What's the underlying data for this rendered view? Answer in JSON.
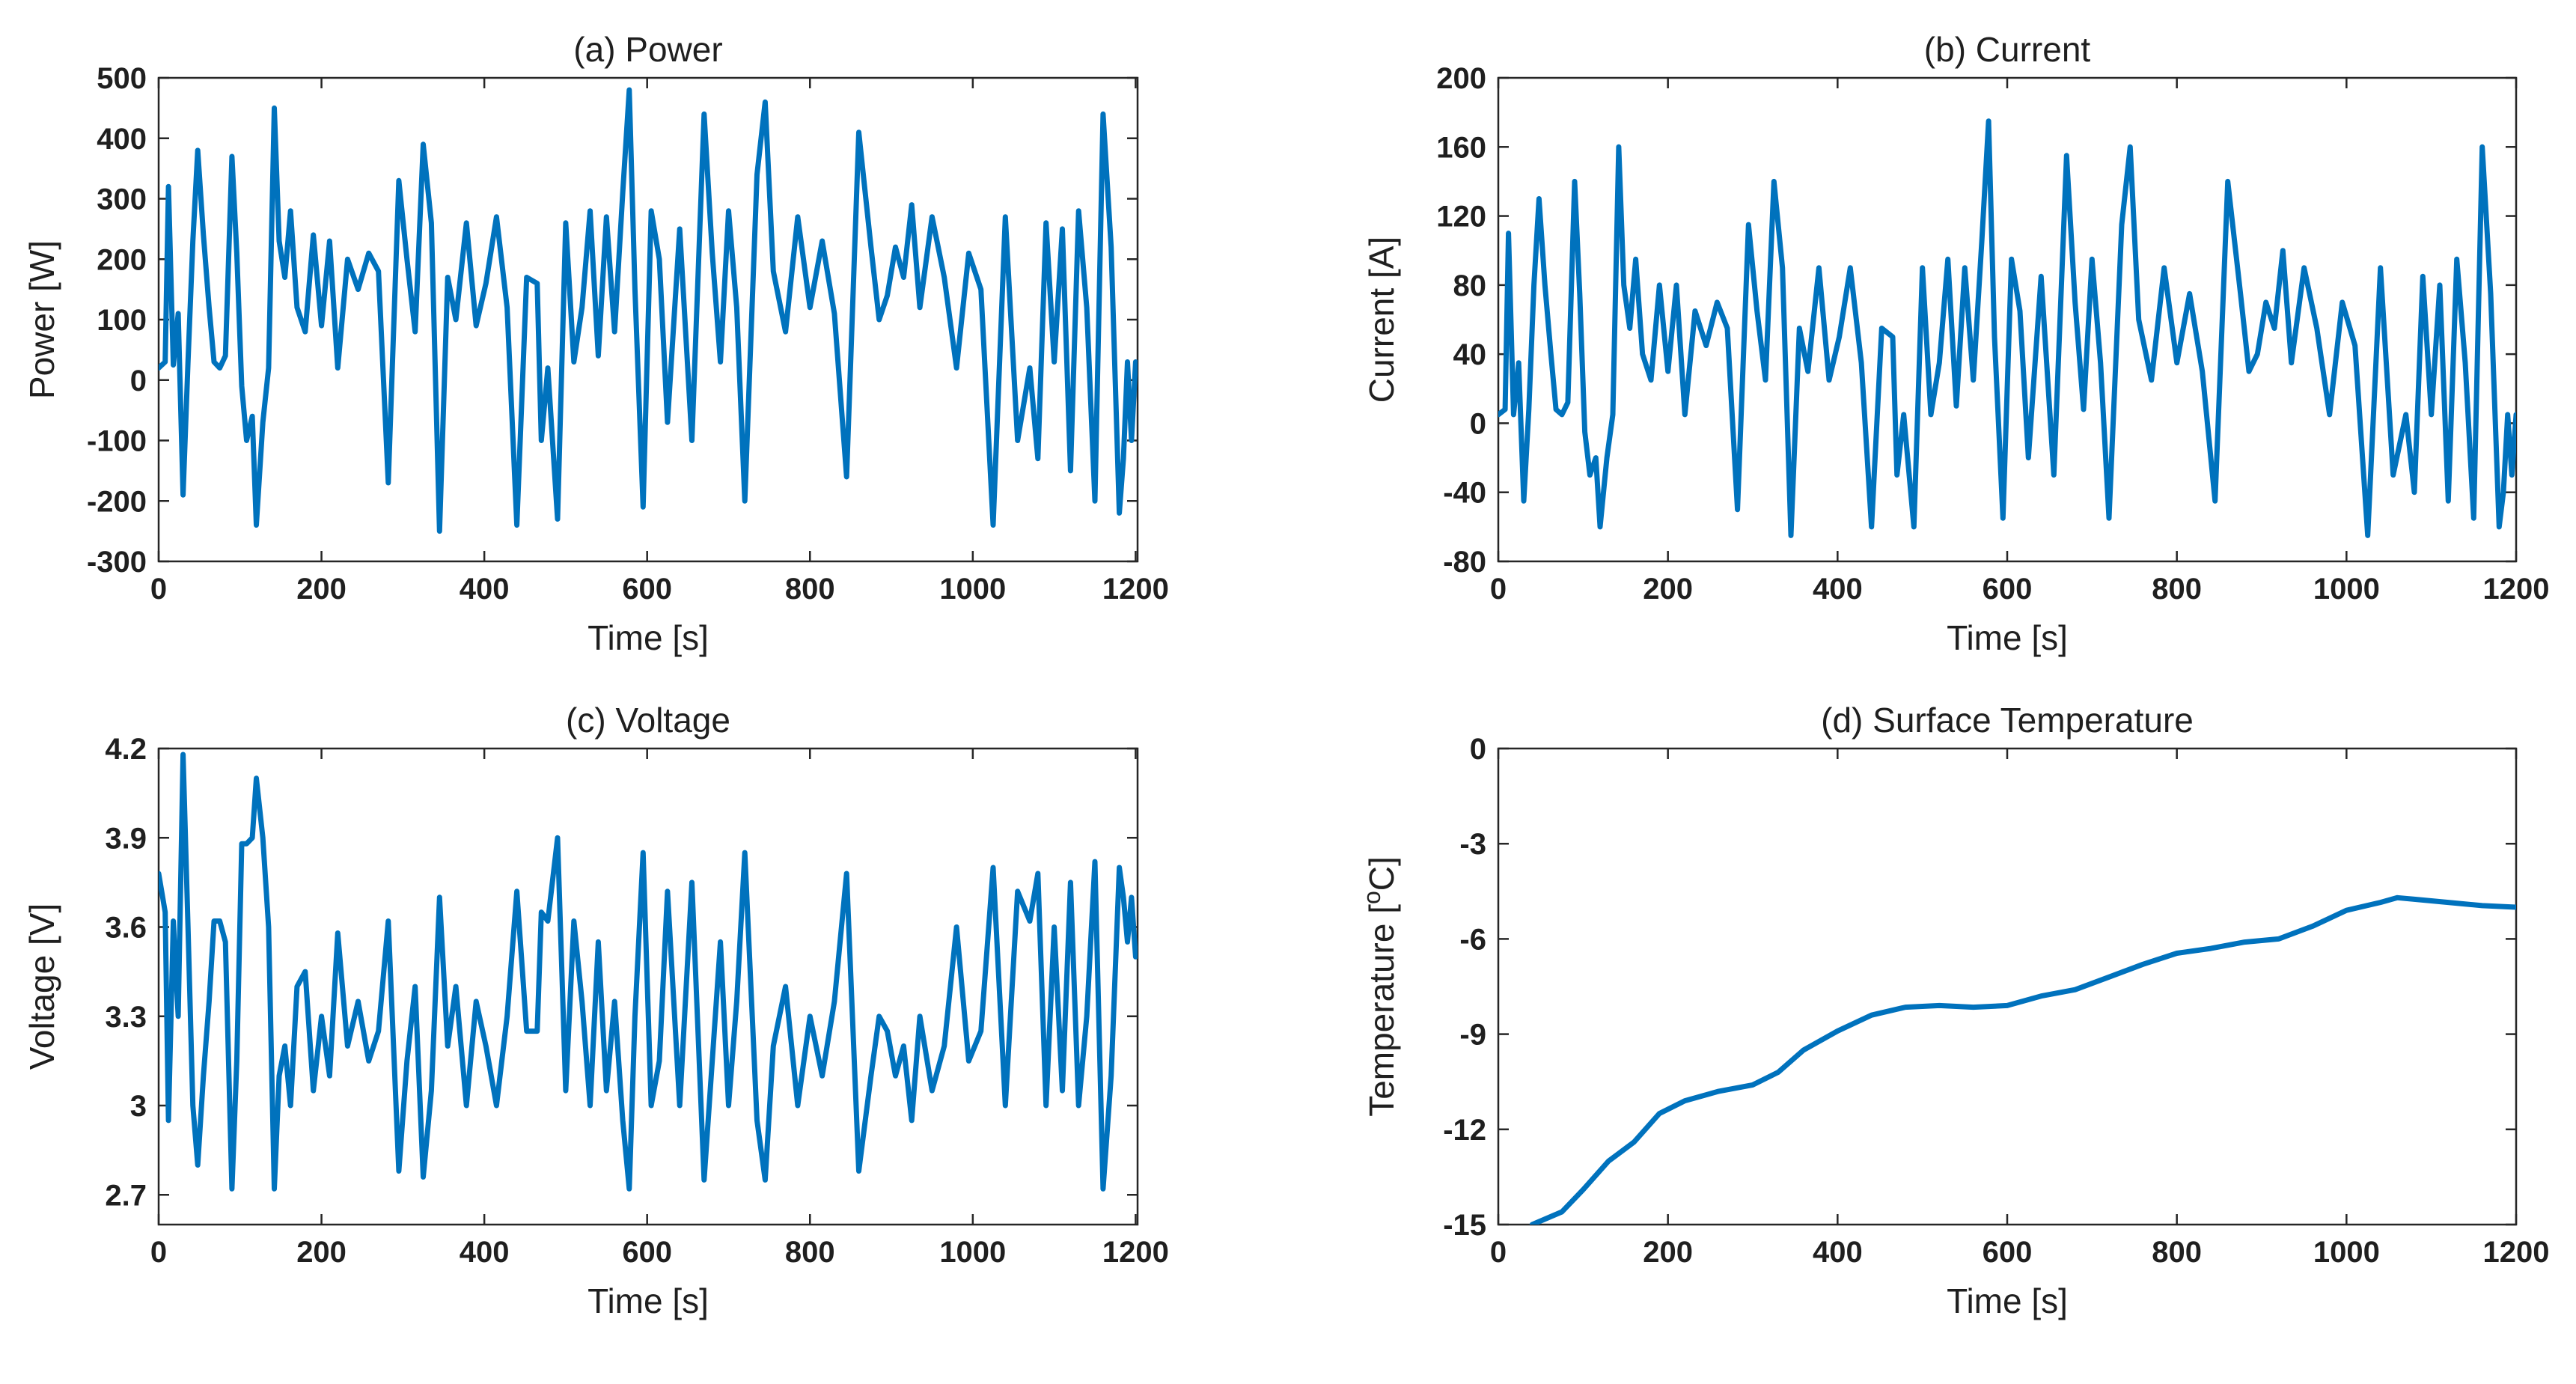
{
  "figure": {
    "line_color": "#0072bd"
  },
  "chart_data": [
    {
      "type": "line",
      "title": "(a) Power",
      "xlabel": "Time [s]",
      "ylabel": "Power [W]",
      "xlim": [
        0,
        1200
      ],
      "ylim": [
        -300,
        500
      ],
      "xticks": [
        0,
        200,
        400,
        600,
        800,
        1000,
        1200
      ],
      "xtick_labels": [
        "0",
        "200",
        "400",
        "600",
        "800",
        "1000",
        "1200"
      ],
      "yticks": [
        -300,
        -200,
        -100,
        0,
        100,
        200,
        300,
        400,
        500
      ],
      "ytick_labels": [
        "-300",
        "-200",
        "-100",
        "0",
        "100",
        "200",
        "300",
        "400",
        "500"
      ],
      "series": [
        {
          "name": "Power",
          "x": [
            0,
            8,
            12,
            18,
            24,
            30,
            36,
            42,
            48,
            55,
            62,
            68,
            75,
            82,
            90,
            96,
            102,
            108,
            115,
            120,
            128,
            135,
            142,
            148,
            155,
            162,
            170,
            180,
            190,
            200,
            210,
            220,
            232,
            245,
            258,
            270,
            282,
            295,
            305,
            315,
            325,
            335,
            345,
            355,
            365,
            378,
            390,
            402,
            415,
            428,
            440,
            452,
            465,
            470,
            478,
            490,
            500,
            510,
            520,
            530,
            540,
            550,
            560,
            570,
            578,
            585,
            595,
            605,
            615,
            625,
            640,
            655,
            670,
            680,
            690,
            700,
            710,
            720,
            735,
            745,
            755,
            770,
            785,
            800,
            815,
            830,
            845,
            860,
            875,
            885,
            895,
            905,
            915,
            925,
            935,
            950,
            965,
            980,
            995,
            1010,
            1025,
            1040,
            1055,
            1070,
            1080,
            1090,
            1100,
            1110,
            1120,
            1130,
            1140,
            1150,
            1160,
            1170,
            1180,
            1185,
            1190,
            1195,
            1200
          ],
          "y": [
            20,
            30,
            320,
            25,
            110,
            -190,
            30,
            230,
            380,
            240,
            120,
            30,
            20,
            40,
            370,
            210,
            -10,
            -100,
            -60,
            -240,
            -70,
            20,
            450,
            230,
            170,
            280,
            120,
            80,
            240,
            90,
            230,
            20,
            200,
            150,
            210,
            180,
            -170,
            330,
            200,
            80,
            390,
            260,
            -250,
            170,
            100,
            260,
            90,
            160,
            270,
            120,
            -240,
            170,
            160,
            -100,
            20,
            -230,
            260,
            30,
            120,
            280,
            40,
            270,
            80,
            310,
            480,
            150,
            -210,
            280,
            200,
            -70,
            250,
            -100,
            440,
            210,
            30,
            280,
            120,
            -200,
            340,
            460,
            180,
            80,
            270,
            120,
            230,
            110,
            -160,
            410,
            220,
            100,
            140,
            220,
            170,
            290,
            120,
            270,
            170,
            20,
            210,
            150,
            -240,
            270,
            -100,
            20,
            -130,
            260,
            30,
            250,
            -150,
            280,
            120,
            -200,
            440,
            220,
            -220,
            -130,
            30,
            -100,
            30
          ]
        }
      ]
    },
    {
      "type": "line",
      "title": "(b) Current",
      "xlabel": "Time [s]",
      "ylabel": "Current [A]",
      "xlim": [
        0,
        1200
      ],
      "ylim": [
        -80,
        200
      ],
      "xticks": [
        0,
        200,
        400,
        600,
        800,
        1000,
        1200
      ],
      "xtick_labels": [
        "0",
        "200",
        "400",
        "600",
        "800",
        "1000",
        "1200"
      ],
      "yticks": [
        -80,
        -40,
        0,
        40,
        80,
        120,
        160,
        200
      ],
      "ytick_labels": [
        "-80",
        "-40",
        "0",
        "40",
        "80",
        "120",
        "160",
        "200"
      ],
      "series": [
        {
          "name": "Current",
          "x": [
            0,
            8,
            12,
            18,
            24,
            30,
            36,
            42,
            48,
            55,
            62,
            68,
            75,
            82,
            90,
            96,
            102,
            108,
            115,
            120,
            128,
            135,
            142,
            148,
            155,
            162,
            170,
            180,
            190,
            200,
            210,
            220,
            232,
            245,
            258,
            270,
            282,
            295,
            305,
            315,
            325,
            335,
            345,
            355,
            365,
            378,
            390,
            402,
            415,
            428,
            440,
            452,
            465,
            470,
            478,
            490,
            500,
            510,
            520,
            530,
            540,
            550,
            560,
            570,
            578,
            585,
            595,
            605,
            615,
            625,
            640,
            655,
            670,
            680,
            690,
            700,
            710,
            720,
            735,
            745,
            755,
            770,
            785,
            800,
            815,
            830,
            845,
            860,
            875,
            885,
            895,
            905,
            915,
            925,
            935,
            950,
            965,
            980,
            995,
            1010,
            1025,
            1040,
            1055,
            1070,
            1080,
            1090,
            1100,
            1110,
            1120,
            1130,
            1140,
            1150,
            1160,
            1170,
            1180,
            1185,
            1190,
            1195,
            1200
          ],
          "y": [
            5,
            8,
            110,
            5,
            35,
            -45,
            8,
            80,
            130,
            80,
            40,
            8,
            5,
            12,
            140,
            75,
            -5,
            -30,
            -20,
            -60,
            -20,
            5,
            160,
            80,
            55,
            95,
            40,
            25,
            80,
            30,
            80,
            5,
            65,
            45,
            70,
            55,
            -50,
            115,
            65,
            25,
            140,
            90,
            -65,
            55,
            30,
            90,
            25,
            50,
            90,
            35,
            -60,
            55,
            50,
            -30,
            5,
            -60,
            90,
            5,
            35,
            95,
            10,
            90,
            25,
            105,
            175,
            50,
            -55,
            95,
            65,
            -20,
            85,
            -30,
            155,
            70,
            8,
            95,
            35,
            -55,
            115,
            160,
            60,
            25,
            90,
            35,
            75,
            30,
            -45,
            140,
            75,
            30,
            40,
            70,
            55,
            100,
            35,
            90,
            55,
            5,
            70,
            45,
            -65,
            90,
            -30,
            5,
            -40,
            85,
            5,
            80,
            -45,
            95,
            35,
            -55,
            160,
            75,
            -60,
            -40,
            5,
            -30,
            5
          ]
        }
      ]
    },
    {
      "type": "line",
      "title": "(c) Voltage",
      "xlabel": "Time [s]",
      "ylabel": "Voltage [V]",
      "xlim": [
        0,
        1200
      ],
      "ylim": [
        2.6,
        4.2
      ],
      "xticks": [
        0,
        200,
        400,
        600,
        800,
        1000,
        1200
      ],
      "xtick_labels": [
        "0",
        "200",
        "400",
        "600",
        "800",
        "1000",
        "1200"
      ],
      "yticks": [
        2.7,
        3,
        3.3,
        3.6,
        3.9,
        4.2
      ],
      "ytick_labels": [
        "2.7",
        "3",
        "3.3",
        "3.6",
        "3.9",
        "4.2"
      ],
      "series": [
        {
          "name": "Voltage",
          "x": [
            0,
            8,
            12,
            18,
            24,
            30,
            36,
            42,
            48,
            55,
            62,
            68,
            75,
            82,
            90,
            96,
            102,
            108,
            115,
            120,
            128,
            135,
            142,
            148,
            155,
            162,
            170,
            180,
            190,
            200,
            210,
            220,
            232,
            245,
            258,
            270,
            282,
            295,
            305,
            315,
            325,
            335,
            345,
            355,
            365,
            378,
            390,
            402,
            415,
            428,
            440,
            452,
            465,
            470,
            478,
            490,
            500,
            510,
            520,
            530,
            540,
            550,
            560,
            570,
            578,
            585,
            595,
            605,
            615,
            625,
            640,
            655,
            670,
            680,
            690,
            700,
            710,
            720,
            735,
            745,
            755,
            770,
            785,
            800,
            815,
            830,
            845,
            860,
            875,
            885,
            895,
            905,
            915,
            925,
            935,
            950,
            965,
            980,
            995,
            1010,
            1025,
            1040,
            1055,
            1070,
            1080,
            1090,
            1100,
            1110,
            1120,
            1130,
            1140,
            1150,
            1160,
            1170,
            1180,
            1185,
            1190,
            1195,
            1200
          ],
          "y": [
            3.78,
            3.65,
            2.95,
            3.62,
            3.3,
            4.18,
            3.6,
            3.0,
            2.8,
            3.1,
            3.35,
            3.62,
            3.62,
            3.55,
            2.72,
            3.15,
            3.88,
            3.88,
            3.9,
            4.1,
            3.9,
            3.6,
            2.72,
            3.1,
            3.2,
            3.0,
            3.4,
            3.45,
            3.05,
            3.3,
            3.1,
            3.58,
            3.2,
            3.35,
            3.15,
            3.25,
            3.62,
            2.78,
            3.15,
            3.4,
            2.76,
            3.05,
            3.7,
            3.2,
            3.4,
            3.0,
            3.35,
            3.2,
            3.0,
            3.3,
            3.72,
            3.25,
            3.25,
            3.65,
            3.62,
            3.9,
            3.05,
            3.62,
            3.35,
            3.0,
            3.55,
            3.05,
            3.35,
            2.95,
            2.72,
            3.3,
            3.85,
            3.0,
            3.15,
            3.72,
            3.0,
            3.75,
            2.75,
            3.15,
            3.55,
            3.0,
            3.35,
            3.85,
            2.95,
            2.75,
            3.2,
            3.4,
            3.0,
            3.3,
            3.1,
            3.35,
            3.78,
            2.78,
            3.1,
            3.3,
            3.25,
            3.1,
            3.2,
            2.95,
            3.3,
            3.05,
            3.2,
            3.6,
            3.15,
            3.25,
            3.8,
            3.0,
            3.72,
            3.62,
            3.78,
            3.0,
            3.6,
            3.05,
            3.75,
            3.0,
            3.3,
            3.82,
            2.72,
            3.1,
            3.8,
            3.7,
            3.55,
            3.7,
            3.5
          ]
        }
      ]
    },
    {
      "type": "line",
      "title": "(d) Surface Temperature",
      "xlabel": "Time [s]",
      "ylabel": "Temperature [",
      "ylabel_sup": "o",
      "ylabel_end": "C]",
      "xlim": [
        0,
        1200
      ],
      "ylim": [
        -15,
        0
      ],
      "xticks": [
        0,
        200,
        400,
        600,
        800,
        1000,
        1200
      ],
      "xtick_labels": [
        "0",
        "200",
        "400",
        "600",
        "800",
        "1000",
        "1200"
      ],
      "yticks": [
        -15,
        -12,
        -9,
        -6,
        -3,
        0
      ],
      "ytick_labels": [
        "-15",
        "-12",
        "-9",
        "-6",
        "-3",
        "0"
      ],
      "series": [
        {
          "name": "Surface Temperature",
          "x": [
            40,
            75,
            100,
            130,
            160,
            190,
            220,
            260,
            300,
            330,
            360,
            400,
            440,
            480,
            520,
            560,
            600,
            640,
            680,
            720,
            760,
            800,
            840,
            880,
            920,
            960,
            1000,
            1040,
            1060,
            1080,
            1120,
            1160,
            1200
          ],
          "y": [
            -15.0,
            -14.6,
            -13.9,
            -13.0,
            -12.4,
            -11.5,
            -11.1,
            -10.8,
            -10.6,
            -10.2,
            -9.5,
            -8.9,
            -8.4,
            -8.15,
            -8.1,
            -8.15,
            -8.1,
            -7.8,
            -7.6,
            -7.2,
            -6.8,
            -6.45,
            -6.3,
            -6.1,
            -6.0,
            -5.6,
            -5.1,
            -4.85,
            -4.7,
            -4.75,
            -4.85,
            -4.95,
            -5.0
          ]
        }
      ]
    }
  ]
}
